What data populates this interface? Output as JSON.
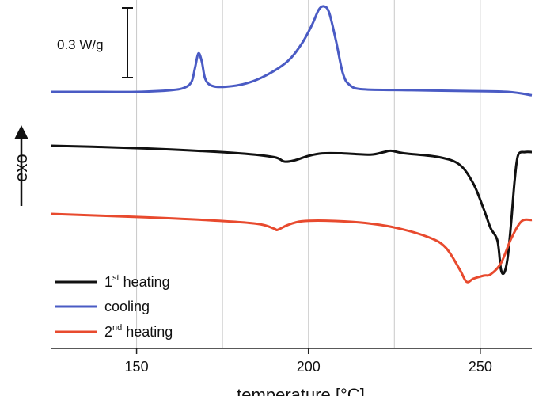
{
  "chart_data": {
    "type": "line",
    "xlabel": "temperature [°C]",
    "ylabel": "exo",
    "xlim": [
      125,
      265
    ],
    "xticks": [
      150,
      200,
      250
    ],
    "xtick_labels": [
      "150",
      "200",
      "250"
    ],
    "scale_bar_label": "0.3 W/g",
    "series": [
      {
        "name": "cooling",
        "color": "#4a5bc4",
        "points": [
          [
            125,
            0.0
          ],
          [
            140,
            0.0
          ],
          [
            150,
            0.0
          ],
          [
            160,
            0.02
          ],
          [
            164,
            0.05
          ],
          [
            166,
            0.12
          ],
          [
            167,
            0.28
          ],
          [
            168,
            0.45
          ],
          [
            169,
            0.35
          ],
          [
            170,
            0.15
          ],
          [
            172,
            0.07
          ],
          [
            176,
            0.06
          ],
          [
            182,
            0.1
          ],
          [
            188,
            0.2
          ],
          [
            194,
            0.36
          ],
          [
            198,
            0.56
          ],
          [
            201,
            0.78
          ],
          [
            203,
            0.96
          ],
          [
            204.5,
            1.0
          ],
          [
            206,
            0.93
          ],
          [
            208,
            0.6
          ],
          [
            210,
            0.22
          ],
          [
            212,
            0.08
          ],
          [
            216,
            0.03
          ],
          [
            230,
            0.02
          ],
          [
            245,
            0.01
          ],
          [
            258,
            0.0
          ],
          [
            265,
            -0.04
          ]
        ]
      },
      {
        "name": "1st heating",
        "sup": "st",
        "color": "#111111",
        "points": [
          [
            125,
            0.0
          ],
          [
            140,
            -0.02
          ],
          [
            160,
            -0.06
          ],
          [
            180,
            -0.12
          ],
          [
            190,
            -0.18
          ],
          [
            193,
            -0.25
          ],
          [
            196,
            -0.23
          ],
          [
            200,
            -0.16
          ],
          [
            204,
            -0.12
          ],
          [
            210,
            -0.12
          ],
          [
            218,
            -0.14
          ],
          [
            222,
            -0.1
          ],
          [
            224,
            -0.08
          ],
          [
            228,
            -0.12
          ],
          [
            238,
            -0.18
          ],
          [
            244,
            -0.3
          ],
          [
            248,
            -0.6
          ],
          [
            251,
            -1.0
          ],
          [
            253,
            -1.3
          ],
          [
            255,
            -1.5
          ],
          [
            256,
            -1.95
          ],
          [
            257,
            -2.0
          ],
          [
            258,
            -1.75
          ],
          [
            259,
            -1.2
          ],
          [
            260,
            -0.55
          ],
          [
            261,
            -0.15
          ],
          [
            263,
            -0.1
          ],
          [
            265,
            -0.1
          ]
        ]
      },
      {
        "name": "2nd heating",
        "sup": "nd",
        "color": "#e84a2e",
        "points": [
          [
            125,
            0.0
          ],
          [
            150,
            -0.05
          ],
          [
            170,
            -0.1
          ],
          [
            185,
            -0.16
          ],
          [
            190,
            -0.24
          ],
          [
            191,
            -0.26
          ],
          [
            194,
            -0.18
          ],
          [
            198,
            -0.12
          ],
          [
            205,
            -0.11
          ],
          [
            215,
            -0.14
          ],
          [
            225,
            -0.22
          ],
          [
            235,
            -0.38
          ],
          [
            240,
            -0.55
          ],
          [
            244,
            -0.9
          ],
          [
            246,
            -1.1
          ],
          [
            248,
            -1.05
          ],
          [
            251,
            -1.0
          ],
          [
            253,
            -0.98
          ],
          [
            256,
            -0.8
          ],
          [
            259,
            -0.4
          ],
          [
            262,
            -0.12
          ],
          [
            265,
            -0.1
          ]
        ]
      }
    ]
  }
}
